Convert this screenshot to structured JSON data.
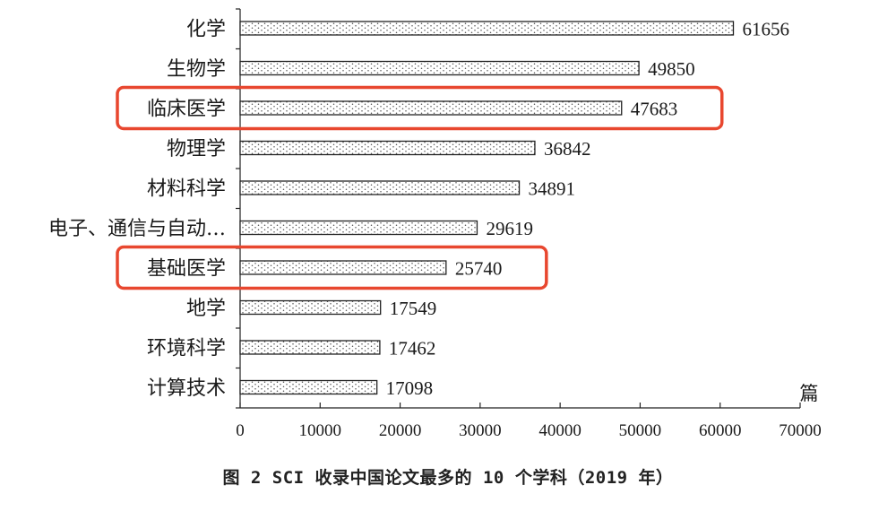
{
  "caption": "图 2  SCI 收录中国论文最多的 10 个学科（2019 年）",
  "colors": {
    "highlight": "#e8472f",
    "bar_outline": "#222222",
    "dot": "#555555"
  },
  "chart_data": {
    "type": "bar",
    "orientation": "horizontal",
    "categories": [
      "化学",
      "生物学",
      "临床医学",
      "物理学",
      "材料科学",
      "电子、通信与自动…",
      "基础医学",
      "地学",
      "环境科学",
      "计算技术"
    ],
    "values": [
      61656,
      49850,
      47683,
      36842,
      34891,
      29619,
      25740,
      17549,
      17462,
      17098
    ],
    "value_labels": [
      "61656",
      "49850",
      "47683",
      "36842",
      "34891",
      "29619",
      "25740",
      "17549",
      "17462",
      "17098"
    ],
    "x_ticks": [
      "0",
      "10000",
      "20000",
      "30000",
      "40000",
      "50000",
      "60000",
      "70000"
    ],
    "xlim": [
      0,
      70000
    ],
    "xlabel": "篇",
    "grid": false,
    "fill_pattern": "dotted",
    "highlighted_categories": [
      "临床医学",
      "基础医学"
    ]
  }
}
